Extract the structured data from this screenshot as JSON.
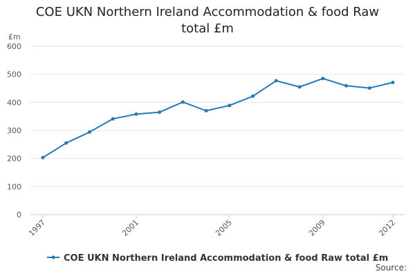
{
  "title_lines": [
    "COE UKN Northern Ireland Accommodation & food Raw",
    "total £m"
  ],
  "source_label": "Source:",
  "colors": {
    "series": "#1f7bb6",
    "grid": "#e6e6e6",
    "axis": "#cccccc",
    "tick_text": "#555555"
  },
  "chart_data": {
    "type": "line",
    "title": "COE UKN Northern Ireland Accommodation & food Raw total £m",
    "ylabel": "£m",
    "xlabel": "",
    "ylim": [
      0,
      600
    ],
    "yticks": [
      0,
      100,
      200,
      300,
      400,
      500,
      600
    ],
    "xlim": [
      1997,
      2012
    ],
    "xticks": [
      1997,
      2001,
      2005,
      2009,
      2012
    ],
    "grid": true,
    "legend_position": "bottom",
    "series": [
      {
        "name": "COE UKN Northern Ireland Accommodation & food Raw total £m",
        "x": [
          1997,
          1998,
          1999,
          2000,
          2001,
          2002,
          2003,
          2004,
          2005,
          2006,
          2007,
          2008,
          2009,
          2010,
          2011,
          2012
        ],
        "values": [
          203,
          255,
          294,
          341,
          358,
          365,
          401,
          370,
          389,
          422,
          477,
          455,
          485,
          459,
          451,
          471
        ]
      }
    ]
  }
}
